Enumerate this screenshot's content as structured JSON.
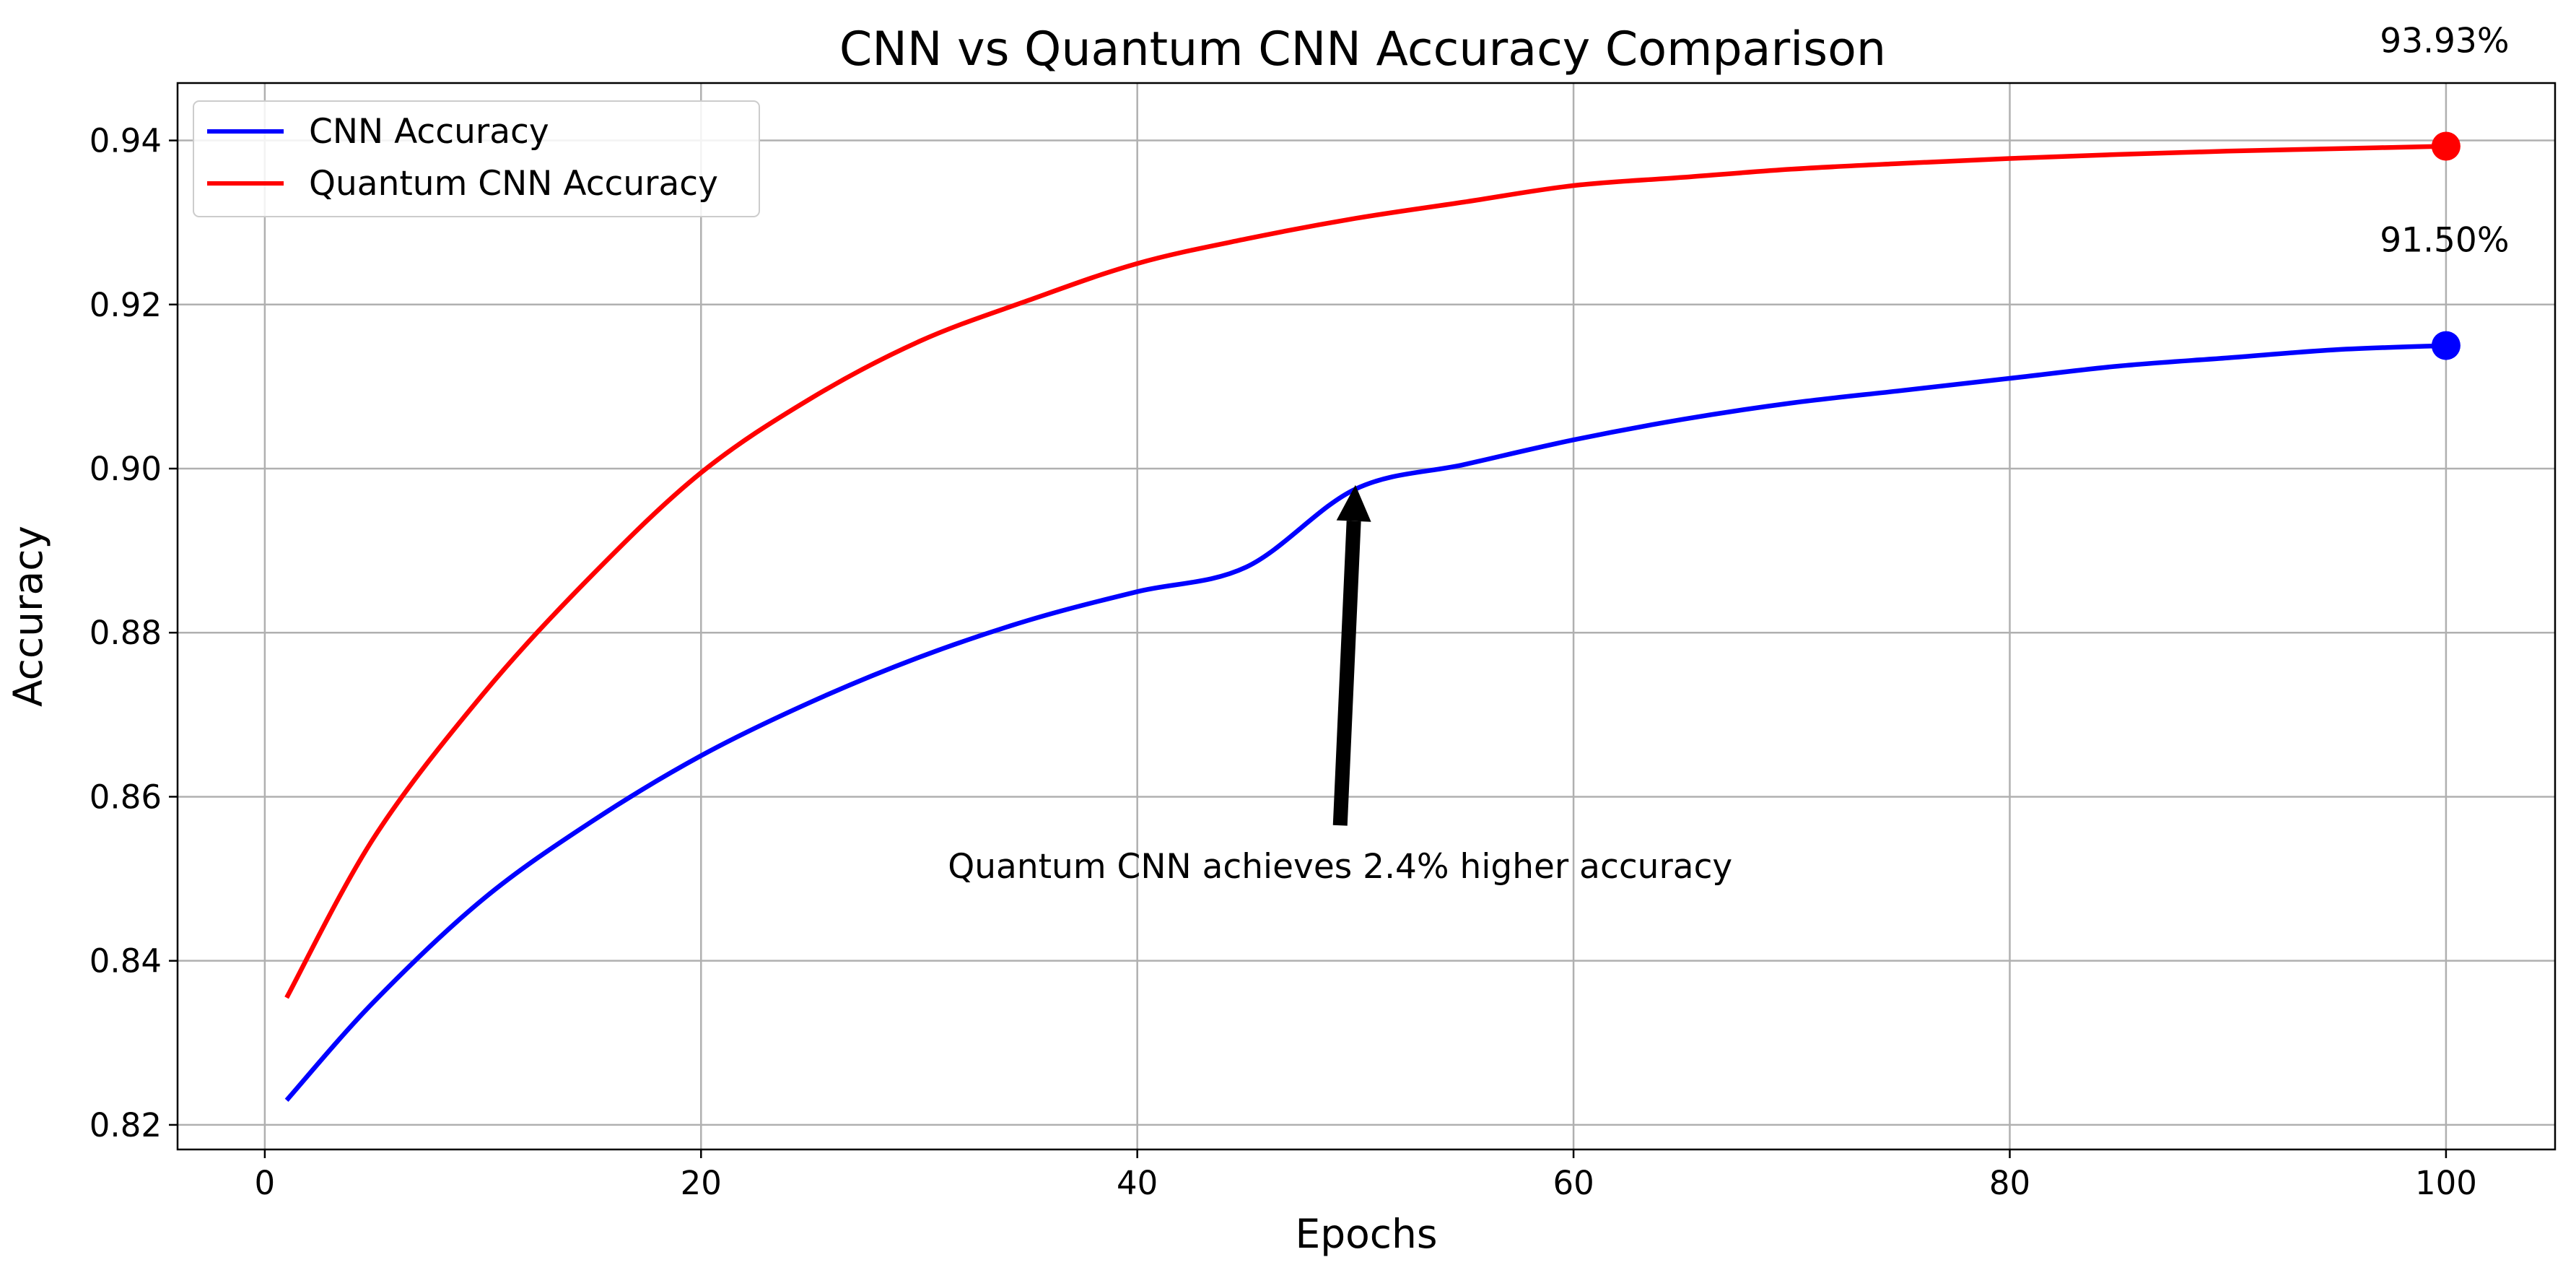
{
  "chart_data": {
    "type": "line",
    "title": "CNN vs Quantum CNN Accuracy Comparison",
    "xlabel": "Epochs",
    "ylabel": "Accuracy",
    "xlim": [
      -4,
      105
    ],
    "ylim": [
      0.817,
      0.947
    ],
    "xticks": [
      0,
      20,
      40,
      60,
      80,
      100
    ],
    "yticks": [
      0.82,
      0.84,
      0.86,
      0.88,
      0.9,
      0.92,
      0.94
    ],
    "xtick_labels": [
      "0",
      "20",
      "40",
      "60",
      "80",
      "100"
    ],
    "ytick_labels": [
      "0.82",
      "0.84",
      "0.86",
      "0.88",
      "0.90",
      "0.92",
      "0.94"
    ],
    "grid": true,
    "legend_position": "top-left",
    "series": [
      {
        "name": "CNN Accuracy",
        "color": "#0000ff",
        "x": [
          1,
          5,
          10,
          15,
          20,
          25,
          30,
          35,
          40,
          45,
          50,
          55,
          60,
          65,
          70,
          75,
          80,
          85,
          90,
          95,
          100
        ],
        "y": [
          0.823,
          0.835,
          0.8475,
          0.857,
          0.865,
          0.8715,
          0.877,
          0.8815,
          0.885,
          0.888,
          0.8975,
          0.9005,
          0.9035,
          0.906,
          0.908,
          0.9095,
          0.911,
          0.9125,
          0.9135,
          0.9145,
          0.915
        ],
        "end_point": {
          "x": 100,
          "y": 0.915
        },
        "end_label": "91.50%"
      },
      {
        "name": "Quantum CNN Accuracy",
        "color": "#ff0000",
        "x": [
          1,
          5,
          10,
          15,
          20,
          25,
          30,
          35,
          40,
          45,
          50,
          55,
          60,
          65,
          70,
          75,
          80,
          85,
          90,
          95,
          100
        ],
        "y": [
          0.8355,
          0.855,
          0.8725,
          0.887,
          0.8995,
          0.9085,
          0.9155,
          0.9205,
          0.925,
          0.928,
          0.9305,
          0.9325,
          0.9345,
          0.9355,
          0.9365,
          0.9372,
          0.9378,
          0.9383,
          0.9387,
          0.939,
          0.9393
        ],
        "end_point": {
          "x": 100,
          "y": 0.9393
        },
        "end_label": "93.93%"
      }
    ],
    "annotation": {
      "text": "Quantum CNN achieves 2.4% higher accuracy",
      "arrow_tip": {
        "x": 50,
        "y": 0.898
      },
      "arrow_tail": {
        "x": 49.3,
        "y": 0.8565
      },
      "text_anchor": {
        "x": 49.3,
        "y": 0.8515
      }
    }
  }
}
